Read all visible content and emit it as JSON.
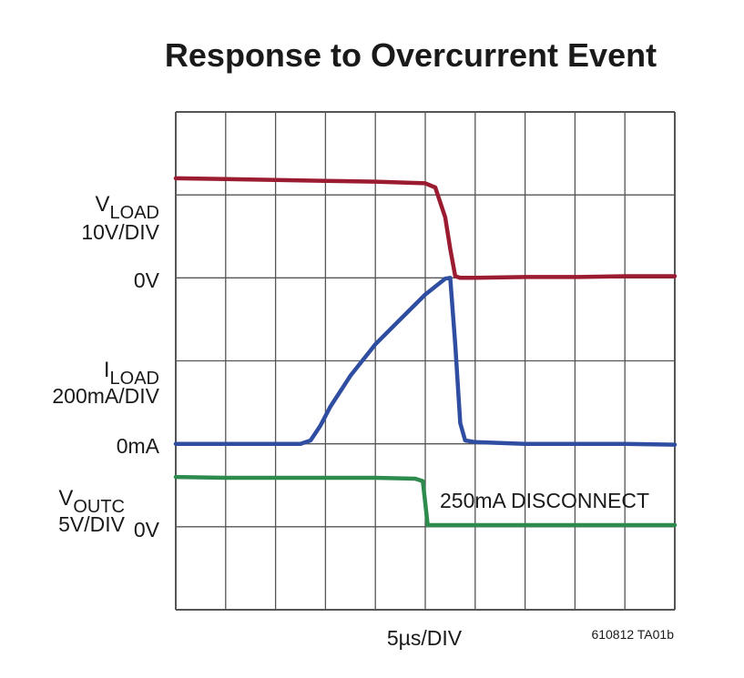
{
  "chart_data": {
    "type": "line",
    "title": "Response to Overcurrent Event",
    "xlabel": "5µs/DIV",
    "figure_code": "610812 TA01b",
    "annotation": "250mA DISCONNECT",
    "grid": true,
    "x_divisions": 10,
    "y_divisions": 6,
    "xlim": [
      0,
      10
    ],
    "ylim": [
      0,
      6
    ],
    "x_unit": "div",
    "y_unit": "div",
    "channel_labels": [
      {
        "name": "V",
        "sub": "LOAD",
        "scale": "10V/DIV",
        "zero_label": "0V"
      },
      {
        "name": "I",
        "sub": "LOAD",
        "scale": "200mA/DIV",
        "zero_label": "0mA"
      },
      {
        "name": "V",
        "sub": "OUTC",
        "scale": "5V/DIV",
        "zero_label": "0V"
      }
    ],
    "series": [
      {
        "name": "VLOAD",
        "color": "#9b1b30",
        "x": [
          0,
          1,
          2,
          3,
          4,
          5,
          5.2,
          5.4,
          5.5,
          5.6,
          5.7,
          5.8,
          6,
          7,
          8,
          9,
          10
        ],
        "y": [
          5.2,
          5.19,
          5.18,
          5.17,
          5.16,
          5.14,
          5.09,
          4.73,
          4.35,
          4.02,
          4.0,
          4.0,
          4.0,
          4.01,
          4.01,
          4.02,
          4.02
        ]
      },
      {
        "name": "ILOAD",
        "color": "#2f4ea1",
        "x": [
          0,
          1,
          2,
          2.5,
          2.7,
          2.9,
          3.1,
          3.5,
          4,
          4.5,
          5,
          5.4,
          5.5,
          5.6,
          5.7,
          5.8,
          6,
          7,
          8,
          9,
          10
        ],
        "y": [
          2.0,
          2.0,
          2.0,
          2.0,
          2.04,
          2.22,
          2.45,
          2.82,
          3.2,
          3.5,
          3.8,
          3.99,
          4.0,
          3.2,
          2.25,
          2.04,
          2.02,
          2.0,
          2.0,
          2.0,
          1.99
        ]
      },
      {
        "name": "VOUTC",
        "color": "#2e8b4e",
        "x": [
          0,
          1,
          2,
          3,
          4,
          4.8,
          4.95,
          5.05,
          6,
          7,
          8,
          9,
          10
        ],
        "y": [
          1.6,
          1.59,
          1.59,
          1.59,
          1.59,
          1.58,
          1.55,
          1.02,
          1.02,
          1.02,
          1.02,
          1.02,
          1.02
        ]
      }
    ]
  }
}
